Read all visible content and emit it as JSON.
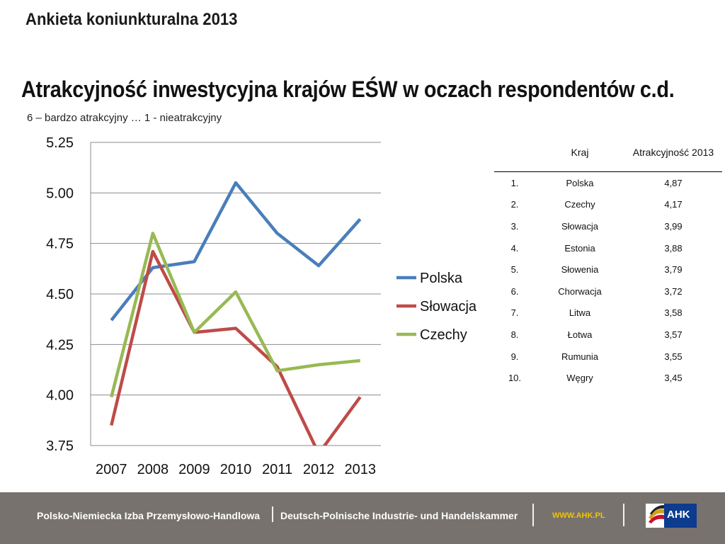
{
  "header": {
    "title": "Ankieta koniunkturalna 2013"
  },
  "main": {
    "title": "Atrakcyjność inwestycyjna krajów EŚW w oczach respondentów c.d.",
    "subtitle": "6 – bardzo atrakcyjny … 1 - nieatrakcyjny"
  },
  "chart_data": {
    "type": "line",
    "x": [
      "2007",
      "2008",
      "2009",
      "2010",
      "2011",
      "2012",
      "2013"
    ],
    "ylim": [
      3.75,
      5.25
    ],
    "yticks": [
      "3.75",
      "4.00",
      "4.25",
      "4.50",
      "4.75",
      "5.00",
      "5.25"
    ],
    "grid": true,
    "legend": "right",
    "series": [
      {
        "name": "Polska",
        "color": "#4a7ebb",
        "values": [
          4.37,
          4.63,
          4.66,
          5.05,
          4.8,
          4.64,
          4.87
        ]
      },
      {
        "name": "Słowacja",
        "color": "#be4b48",
        "values": [
          3.85,
          4.71,
          4.31,
          4.33,
          4.14,
          3.71,
          3.99
        ]
      },
      {
        "name": "Czechy",
        "color": "#98b954",
        "values": [
          3.99,
          4.8,
          4.31,
          4.51,
          4.12,
          4.15,
          4.17
        ]
      }
    ]
  },
  "table": {
    "headers": {
      "kraj": "Kraj",
      "atr": "Atrakcyjność 2013"
    },
    "rows": [
      {
        "n": "1.",
        "kraj": "Polska",
        "v": "4,87"
      },
      {
        "n": "2.",
        "kraj": "Czechy",
        "v": "4,17"
      },
      {
        "n": "3.",
        "kraj": "Słowacja",
        "v": "3,99"
      },
      {
        "n": "4.",
        "kraj": "Estonia",
        "v": "3,88"
      },
      {
        "n": "5.",
        "kraj": "Słowenia",
        "v": "3,79"
      },
      {
        "n": "6.",
        "kraj": "Chorwacja",
        "v": "3,72"
      },
      {
        "n": "7.",
        "kraj": "Litwa",
        "v": "3,58"
      },
      {
        "n": "8.",
        "kraj": "Łotwa",
        "v": "3,57"
      },
      {
        "n": "9.",
        "kraj": "Rumunia",
        "v": "3,55"
      },
      {
        "n": "10.",
        "kraj": "Węgry",
        "v": "3,45"
      }
    ]
  },
  "footer": {
    "pl": "Polsko-Niemiecka Izba Przemysłowo-Handlowa",
    "de": "Deutsch-Polnische Industrie- und Handelskammer",
    "www": "WWW.AHK.PL",
    "logo": "AHK"
  }
}
